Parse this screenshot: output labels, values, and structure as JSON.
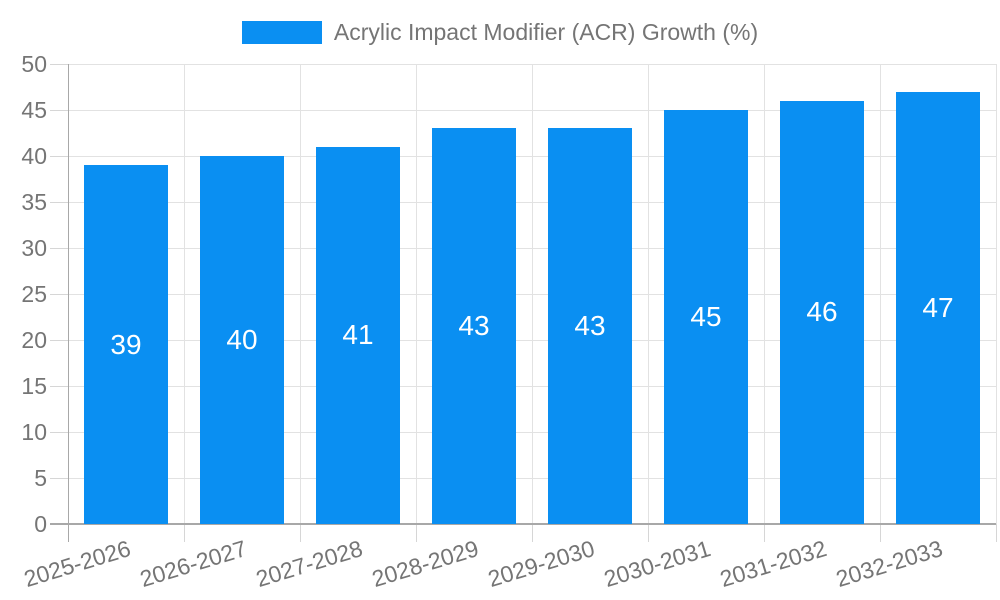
{
  "legend": {
    "label": "Acrylic Impact Modifier (ACR) Growth (%)"
  },
  "chart_data": {
    "type": "bar",
    "title": "Acrylic Impact Modifier (ACR) Growth (%)",
    "categories": [
      "2025-2026",
      "2026-2027",
      "2027-2028",
      "2028-2029",
      "2029-2030",
      "2030-2031",
      "2031-2032",
      "2032-2033"
    ],
    "values": [
      39,
      40,
      41,
      43,
      43,
      45,
      46,
      47
    ],
    "bar_value_labels": [
      "39",
      "40",
      "41",
      "43",
      "43",
      "45",
      "46",
      "47"
    ],
    "xlabel": "",
    "ylabel": "",
    "ylim": [
      0,
      50
    ],
    "ytick_step": 5,
    "yticks": [
      0,
      5,
      10,
      15,
      20,
      25,
      30,
      35,
      40,
      45,
      50
    ],
    "grid": true,
    "legend_position": "top-center",
    "colors": {
      "bar": "#0a8ff2",
      "axis_text": "#757575",
      "bar_label_text": "#ffffff",
      "gridline": "#e2e2e2",
      "tick": "#d6d6d6",
      "axis_line": "#a8a8a8"
    }
  }
}
